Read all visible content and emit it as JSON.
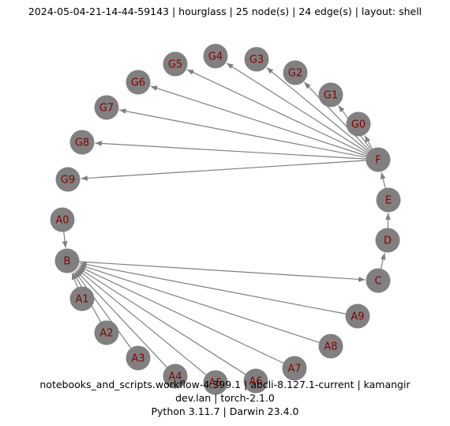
{
  "title": "2024-05-04-21-14-44-59143 | hourglass | 25 node(s) | 24 edge(s) | layout: shell",
  "footer": {
    "line1": "notebooks_and_scripts.workflow-4.399.1 | abcli-8.127.1-current | kamangir",
    "line2": "dev.lan | torch-2.1.0",
    "line3": "Python 3.11.7 | Darwin 23.4.0"
  },
  "graph": {
    "node_color": "#808080",
    "label_color": "#8b0000",
    "edge_color": "#7f7f7f",
    "nodes": [
      "A0",
      "B",
      "A1",
      "A2",
      "A3",
      "A4",
      "A5",
      "A6",
      "A7",
      "A8",
      "A9",
      "C",
      "D",
      "E",
      "F",
      "G0",
      "G1",
      "G2",
      "G3",
      "G4",
      "G5",
      "G6",
      "G7",
      "G8",
      "G9"
    ],
    "edges": [
      [
        "A0",
        "B"
      ],
      [
        "A1",
        "B"
      ],
      [
        "A2",
        "B"
      ],
      [
        "A3",
        "B"
      ],
      [
        "A4",
        "B"
      ],
      [
        "A5",
        "B"
      ],
      [
        "A6",
        "B"
      ],
      [
        "A7",
        "B"
      ],
      [
        "A8",
        "B"
      ],
      [
        "A9",
        "B"
      ],
      [
        "B",
        "C"
      ],
      [
        "C",
        "D"
      ],
      [
        "D",
        "E"
      ],
      [
        "E",
        "F"
      ],
      [
        "F",
        "G0"
      ],
      [
        "F",
        "G1"
      ],
      [
        "F",
        "G2"
      ],
      [
        "F",
        "G3"
      ],
      [
        "F",
        "G4"
      ],
      [
        "F",
        "G5"
      ],
      [
        "F",
        "G6"
      ],
      [
        "F",
        "G7"
      ],
      [
        "F",
        "G8"
      ],
      [
        "F",
        "G9"
      ]
    ]
  }
}
